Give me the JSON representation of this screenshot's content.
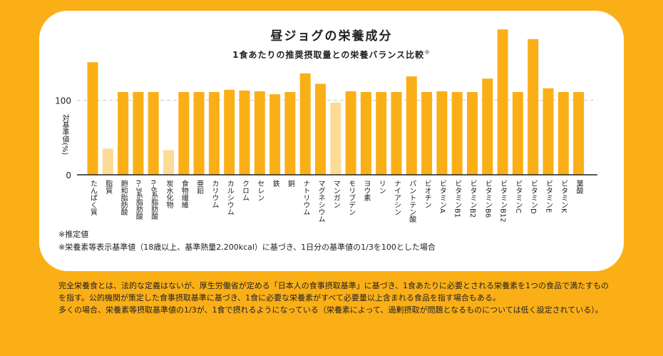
{
  "title": "昼ジョグの栄養成分",
  "subtitle": "1食あたりの推奨摂取量との栄養バランス比較",
  "subtitle_mark": "※",
  "colors": {
    "background": "#FBAF17",
    "bar": "#FBAF17",
    "bar_estimated": "#FBDB96",
    "card": "#FFFFFF"
  },
  "chart_data": {
    "type": "bar",
    "title": "昼ジョグの栄養成分",
    "ylabel": "対基準値(%)",
    "ylim": [
      0,
      200
    ],
    "yticks": [
      0,
      100
    ],
    "reference_line": 100,
    "grid": false,
    "categories": [
      "たんぱく質",
      "脂質",
      "飽和脂肪酸",
      "n-3系脂肪酸",
      "n-6系脂肪酸",
      "炭水化物",
      "食物繊維",
      "亜鉛",
      "カリウム",
      "カルシウム",
      "クロム",
      "セレン",
      "鉄",
      "銅",
      "ナトリウム",
      "マグネシウム",
      "マンガン",
      "モリブデン",
      "ヨウ素",
      "リン",
      "ナイアシン",
      "パントテン酸",
      "ビオチン",
      "ビタミンA",
      "ビタミンB1",
      "ビタミンB2",
      "ビタミンB6",
      "ビタミンB12",
      "ビタミンC",
      "ビタミンD",
      "ビタミンE",
      "ビタミンK",
      "葉酸"
    ],
    "values": [
      151,
      35,
      111,
      111,
      111,
      33,
      111,
      111,
      111,
      114,
      113,
      112,
      108,
      111,
      136,
      122,
      97,
      112,
      111,
      111,
      111,
      132,
      111,
      112,
      111,
      111,
      129,
      195,
      111,
      182,
      116,
      111,
      111
    ],
    "estimated": [
      false,
      true,
      false,
      false,
      false,
      true,
      false,
      false,
      false,
      false,
      false,
      false,
      false,
      false,
      false,
      false,
      true,
      false,
      false,
      false,
      false,
      false,
      false,
      false,
      false,
      false,
      false,
      false,
      false,
      false,
      false,
      false,
      false
    ]
  },
  "notes": [
    "※推定値",
    "※栄養素等表示基準値（18歳以上、基準熱量2,200kcal）に基づき、1日分の基準値の1/3を100とした場合"
  ],
  "description": [
    "完全栄養食とは、法的な定義はないが、厚生労働省が定める「日本人の食事摂取基準」に基づき、1食あたりに必要とされる栄養素を1つの食品で満たすものを指す。公的機関が策定した食事摂取基準に基づき、1食に必要な栄養素がすべて必要量以上含まれる食品を指す場合もある。",
    "多くの場合、栄養素等摂取基準値の1/3が、1食で摂れるようになっている（栄養素によって、過剰摂取が問題となるものについては低く設定されている）。"
  ]
}
